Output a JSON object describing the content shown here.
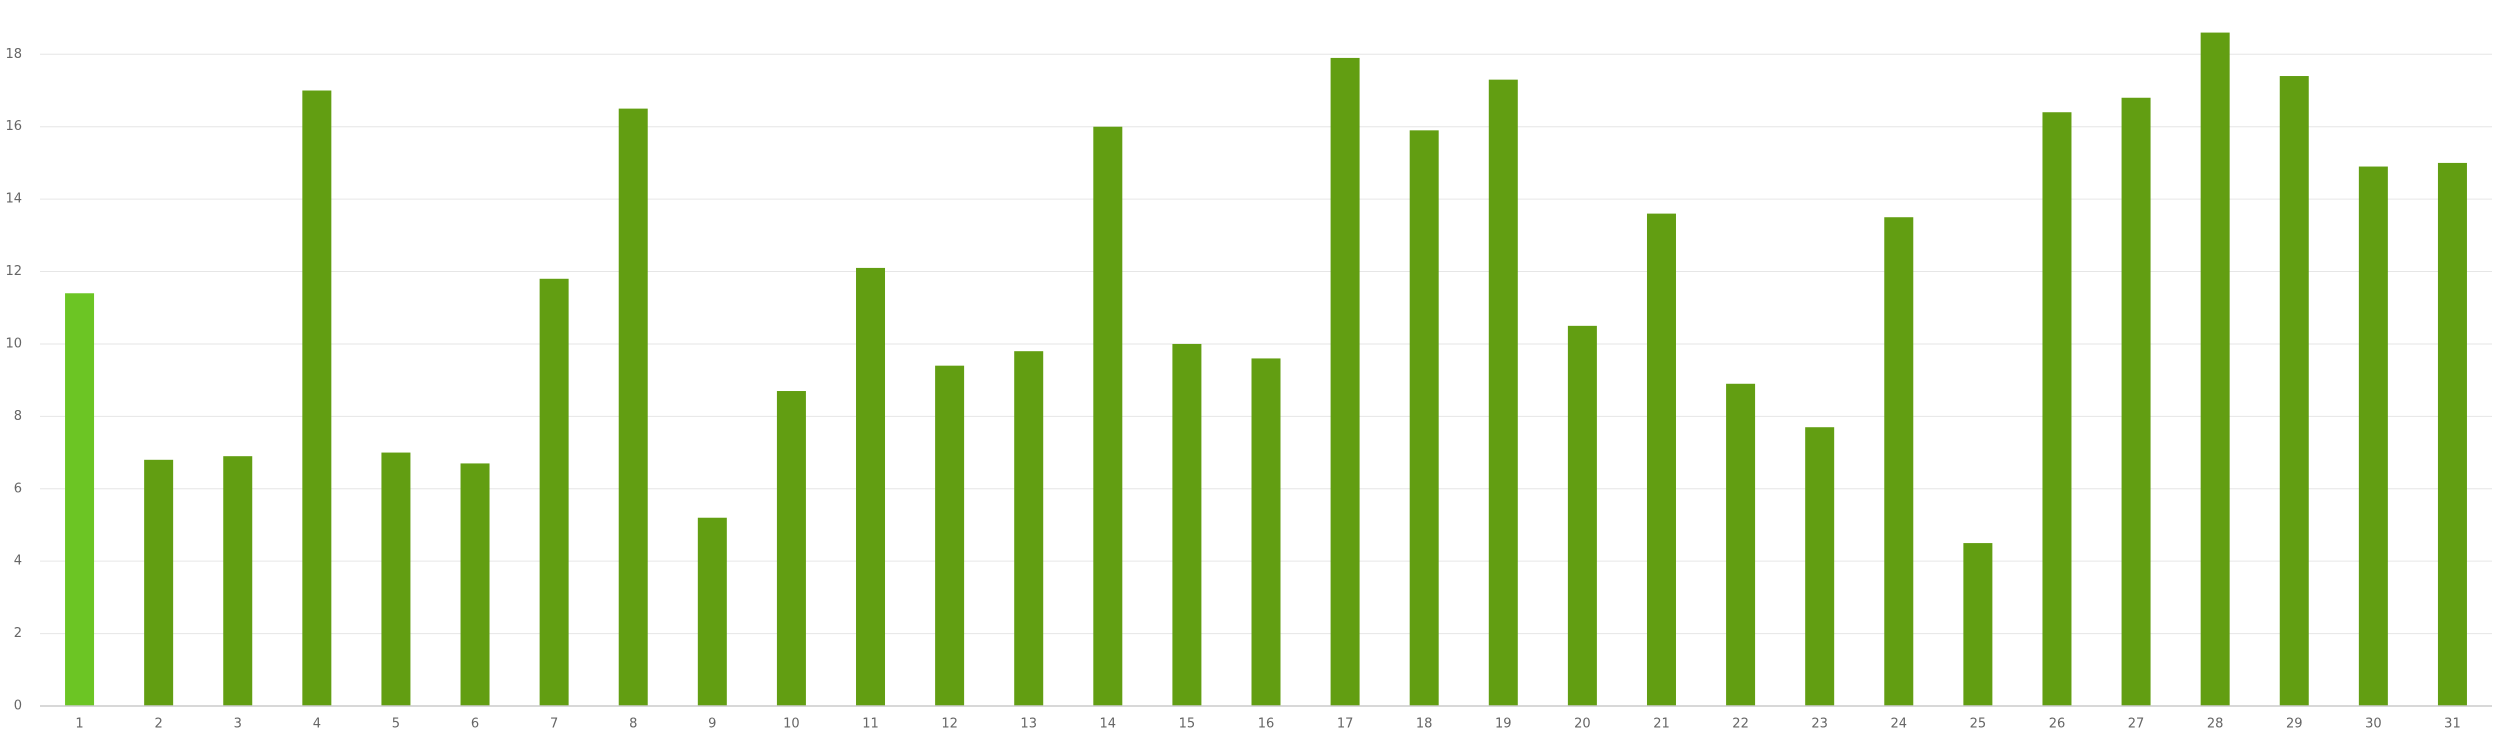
{
  "chart_data": {
    "type": "bar",
    "categories": [
      "1",
      "2",
      "3",
      "4",
      "5",
      "6",
      "7",
      "8",
      "9",
      "10",
      "11",
      "12",
      "13",
      "14",
      "15",
      "16",
      "17",
      "18",
      "19",
      "20",
      "21",
      "22",
      "23",
      "24",
      "25",
      "26",
      "27",
      "28",
      "29",
      "30",
      "31"
    ],
    "values": [
      11.4,
      6.8,
      6.9,
      17.0,
      7.0,
      6.7,
      11.8,
      16.5,
      5.2,
      8.7,
      12.1,
      9.4,
      9.8,
      16.0,
      10.0,
      9.6,
      17.9,
      15.9,
      17.3,
      10.5,
      13.6,
      8.9,
      7.7,
      13.5,
      4.5,
      16.4,
      16.8,
      18.6,
      17.4,
      14.9,
      15.0
    ],
    "colors": [
      "#6cc524",
      "#629e12",
      "#629e12",
      "#629e12",
      "#629e12",
      "#629e12",
      "#629e12",
      "#629e12",
      "#629e12",
      "#629e12",
      "#629e12",
      "#629e12",
      "#629e12",
      "#629e12",
      "#629e12",
      "#629e12",
      "#629e12",
      "#629e12",
      "#629e12",
      "#629e12",
      "#629e12",
      "#629e12",
      "#629e12",
      "#629e12",
      "#629e12",
      "#629e12",
      "#629e12",
      "#629e12",
      "#629e12",
      "#629e12",
      "#629e12"
    ],
    "ylim": [
      0,
      19.5
    ],
    "yticks": [
      0,
      2,
      4,
      6,
      8,
      10,
      12,
      14,
      16,
      18
    ],
    "grid": true
  }
}
